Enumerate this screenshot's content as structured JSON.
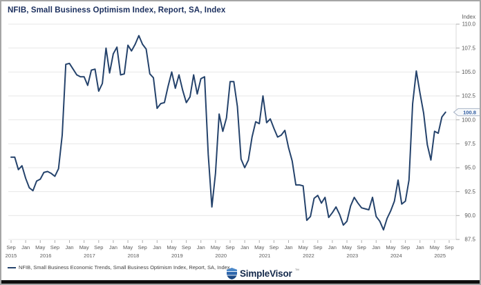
{
  "chart_data": {
    "type": "line",
    "title": "NFIB, Small Business Optimism Index, Report, SA, Index",
    "last_value_label": "100.8",
    "grid": "horizontal",
    "legend_position": "bottom-left",
    "y_axis": {
      "label": "Index",
      "min": 87.5,
      "max": 110.0,
      "tick_step": 2.5,
      "side": "right",
      "tick_labels": [
        "110.0",
        "107.5",
        "105.0",
        "102.5",
        "100.0",
        "97.5",
        "95.0",
        "92.5",
        "90.0",
        "87.5"
      ]
    },
    "x_axis": {
      "start": "Sep 2015",
      "end": "Sep 2025",
      "frequency": "monthly",
      "tick_labels": [
        "Sep",
        "Jan",
        "May",
        "Sep",
        "Jan",
        "May",
        "Sep",
        "Jan",
        "May",
        "Sep",
        "Jan",
        "May",
        "Sep",
        "Jan",
        "May",
        "Sep",
        "Jan",
        "May",
        "Sep",
        "Jan",
        "May",
        "Sep",
        "Jan",
        "May",
        "Sep",
        "Jan",
        "May",
        "Sep",
        "Jan",
        "May",
        "Sep"
      ],
      "year_labels": [
        "2015",
        "2016",
        "2017",
        "2018",
        "2019",
        "2020",
        "2021",
        "2022",
        "2023",
        "2024",
        "2025"
      ]
    },
    "series": [
      {
        "name": "NFIB, Small Business Economic Trends, Small Business Optimism Index, Report, SA, Index",
        "color": "#24426B",
        "start": "2015-09",
        "values": [
          96.1,
          96.1,
          94.8,
          95.2,
          93.9,
          92.9,
          92.6,
          93.6,
          93.8,
          94.5,
          94.6,
          94.4,
          94.1,
          94.9,
          98.4,
          105.8,
          105.9,
          105.3,
          104.7,
          104.5,
          104.5,
          103.6,
          105.2,
          105.3,
          103.0,
          103.8,
          107.5,
          104.9,
          106.9,
          107.6,
          104.7,
          104.8,
          107.8,
          107.2,
          107.9,
          108.8,
          107.9,
          107.4,
          104.8,
          104.4,
          101.2,
          101.7,
          101.8,
          103.5,
          105.0,
          103.3,
          104.7,
          103.1,
          101.8,
          102.4,
          104.7,
          102.7,
          104.3,
          104.5,
          96.4,
          90.9,
          94.4,
          100.6,
          98.8,
          100.2,
          104.0,
          104.0,
          101.4,
          95.9,
          95.0,
          95.8,
          98.2,
          99.8,
          99.6,
          102.5,
          99.7,
          100.1,
          99.1,
          98.2,
          98.4,
          98.9,
          97.1,
          95.7,
          93.2,
          93.2,
          93.1,
          89.5,
          89.9,
          91.8,
          92.1,
          91.3,
          91.9,
          89.8,
          90.3,
          90.9,
          90.1,
          89.0,
          89.4,
          91.0,
          91.9,
          91.3,
          90.8,
          90.7,
          90.6,
          91.9,
          89.9,
          89.4,
          88.5,
          89.7,
          90.5,
          91.5,
          93.7,
          91.2,
          91.5,
          93.7,
          101.7,
          105.1,
          102.8,
          100.7,
          97.4,
          95.8,
          98.8,
          98.6,
          100.3,
          100.8
        ]
      }
    ],
    "colors": {
      "grid": "#E7E7E7",
      "plot_border": "#D9D9D9",
      "tick_mark": "#ADADAD",
      "axis_text": "#595959",
      "callout_text": "#2D5AA0",
      "callout_border": "#A9B4C6",
      "callout_bg": "#F7F9FB"
    }
  },
  "branding": {
    "name": "SimpleVisor",
    "trademark": "™",
    "icon_colors": [
      "#4A87C8",
      "#2F67AD",
      "#1D4A85"
    ]
  }
}
